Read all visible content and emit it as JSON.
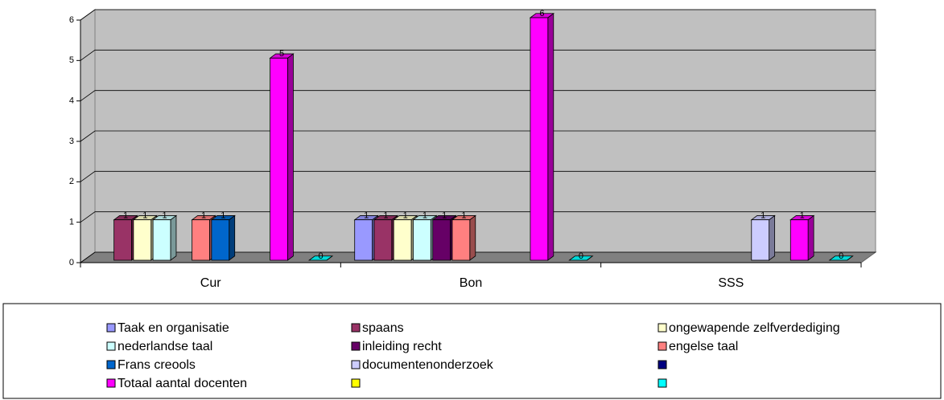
{
  "chart_data": {
    "type": "bar",
    "categories": [
      "Cur",
      "Bon",
      "SSS"
    ],
    "series": [
      {
        "name": "Taak en organisatie",
        "color": "#9999ff",
        "values": [
          null,
          1,
          null
        ]
      },
      {
        "name": "spaans",
        "color": "#993366",
        "values": [
          1,
          1,
          null
        ]
      },
      {
        "name": "ongewapende zelfverdediging",
        "color": "#ffffcc",
        "values": [
          1,
          1,
          null
        ]
      },
      {
        "name": "nederlandse taal",
        "color": "#ccffff",
        "values": [
          1,
          1,
          null
        ]
      },
      {
        "name": "inleiding recht",
        "color": "#660066",
        "values": [
          null,
          1,
          null
        ]
      },
      {
        "name": "engelse taal",
        "color": "#ff8080",
        "values": [
          1,
          1,
          null
        ]
      },
      {
        "name": "Frans creools",
        "color": "#0066cc",
        "values": [
          1,
          null,
          null
        ]
      },
      {
        "name": "documentenonderzoek",
        "color": "#ccccff",
        "values": [
          null,
          null,
          1
        ]
      },
      {
        "name": null,
        "color": "#000080",
        "values": [
          null,
          null,
          null
        ]
      },
      {
        "name": "Totaal aantal docenten",
        "color": "#ff00ff",
        "values": [
          5,
          6,
          1
        ]
      },
      {
        "name": null,
        "color": "#ffff00",
        "values": [
          null,
          null,
          null
        ]
      },
      {
        "name": null,
        "color": "#00ffff",
        "values": [
          0,
          0,
          0
        ]
      }
    ],
    "ylim": [
      0,
      6
    ],
    "yticks": [
      0,
      1,
      2,
      3,
      4,
      5,
      6
    ],
    "grid": true,
    "legend": "bottom",
    "data_labels": true
  }
}
